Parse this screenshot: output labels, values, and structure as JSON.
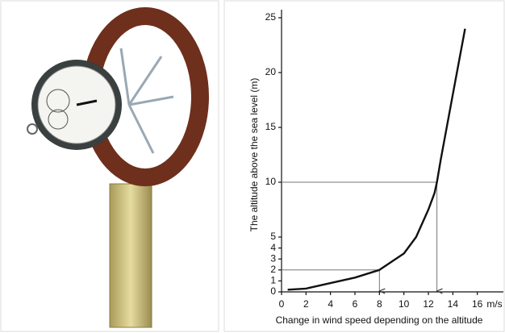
{
  "chart_data": {
    "type": "line",
    "x_label": "Change in wind speed depending on the altitude",
    "y_label": "The altitude above the sea level (m)",
    "x_unit": "m/s",
    "x": [
      0.5,
      2,
      4,
      6,
      8,
      10,
      11,
      12,
      12.5,
      12.7,
      13,
      14,
      15
    ],
    "values": [
      0.2,
      0.3,
      0.8,
      1.3,
      2,
      3.5,
      5,
      7.5,
      9,
      10,
      12,
      18,
      24
    ],
    "color": "#111111",
    "xlim": [
      0,
      18
    ],
    "xticks": [
      0,
      2,
      4,
      6,
      8,
      10,
      12,
      14,
      16
    ],
    "ylim": [
      0,
      25
    ],
    "yticks": [
      0,
      1,
      2,
      3,
      4,
      5,
      10,
      15,
      20,
      25
    ],
    "guides": [
      {
        "x": 12.7,
        "y": 10
      },
      {
        "x": 8,
        "y": 2
      }
    ]
  }
}
